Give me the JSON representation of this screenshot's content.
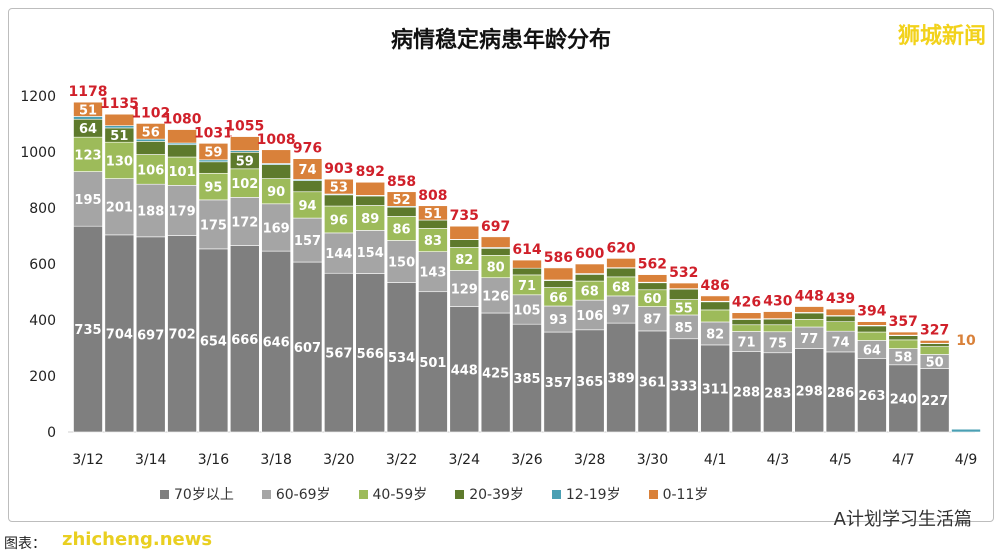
{
  "chart_data": {
    "type": "bar",
    "stacked": true,
    "title": "病情稳定病患年龄分布",
    "categories": [
      "3/12",
      "3/13",
      "3/14",
      "3/15",
      "3/16",
      "3/17",
      "3/18",
      "3/19",
      "3/20",
      "3/21",
      "3/22",
      "3/23",
      "3/24",
      "3/25",
      "3/26",
      "3/27",
      "3/28",
      "3/29",
      "3/30",
      "3/31",
      "4/1",
      "4/2",
      "4/3",
      "4/4",
      "4/5",
      "4/6",
      "4/7",
      "4/8",
      "4/9"
    ],
    "tick_labels": [
      "3/12",
      "3/14",
      "3/16",
      "3/18",
      "3/20",
      "3/22",
      "3/24",
      "3/26",
      "3/28",
      "3/30",
      "4/1",
      "4/3",
      "4/5",
      "4/7",
      "4/9"
    ],
    "ylim": [
      0,
      1200
    ],
    "yticks": [
      0,
      200,
      400,
      600,
      800,
      1000,
      1200
    ],
    "grid": false,
    "legend_position": "bottom",
    "totals": [
      1178,
      1135,
      1102,
      1080,
      1031,
      1055,
      1008,
      976,
      903,
      892,
      858,
      808,
      735,
      697,
      614,
      586,
      600,
      620,
      562,
      532,
      486,
      426,
      430,
      448,
      439,
      394,
      357,
      327,
      10
    ],
    "series": [
      {
        "name": "70岁以上",
        "color": "#7f7f7f",
        "values": [
          735,
          704,
          697,
          702,
          654,
          666,
          646,
          607,
          567,
          566,
          534,
          501,
          448,
          425,
          385,
          357,
          365,
          389,
          361,
          333,
          311,
          288,
          283,
          298,
          286,
          263,
          240,
          227,
          0
        ]
      },
      {
        "name": "60-69岁",
        "color": "#a5a5a5",
        "values": [
          195,
          201,
          188,
          179,
          175,
          172,
          169,
          157,
          144,
          154,
          150,
          143,
          129,
          126,
          105,
          93,
          106,
          97,
          87,
          85,
          82,
          71,
          75,
          77,
          74,
          64,
          58,
          50,
          0
        ]
      },
      {
        "name": "40-59岁",
        "color": "#9dbb5a",
        "values": [
          123,
          130,
          106,
          101,
          95,
          102,
          90,
          94,
          96,
          89,
          86,
          83,
          82,
          80,
          71,
          66,
          68,
          68,
          60,
          55,
          43,
          24,
          25,
          27,
          34,
          30,
          31,
          28,
          0
        ]
      },
      {
        "name": "20-39岁",
        "color": "#5e7a2c",
        "values": [
          64,
          51,
          47,
          44,
          41,
          59,
          50,
          40,
          40,
          34,
          33,
          30,
          28,
          25,
          24,
          25,
          24,
          31,
          25,
          37,
          29,
          19,
          20,
          23,
          20,
          22,
          15,
          11,
          0
        ]
      },
      {
        "name": "12-19岁",
        "color": "#4a9fb3",
        "values": [
          10,
          8,
          8,
          6,
          7,
          6,
          4,
          4,
          3,
          2,
          3,
          0,
          1,
          3,
          0,
          2,
          3,
          2,
          2,
          2,
          2,
          2,
          2,
          2,
          2,
          2,
          2,
          1,
          10
        ]
      },
      {
        "name": "0-11岁",
        "color": "#d9813a",
        "values": [
          51,
          41,
          56,
          48,
          59,
          50,
          49,
          74,
          53,
          47,
          52,
          51,
          47,
          38,
          29,
          43,
          34,
          33,
          27,
          20,
          19,
          22,
          25,
          21,
          23,
          13,
          11,
          10,
          0
        ]
      }
    ],
    "total_label_color": "#d0202a"
  },
  "logo_text": "狮城新闻",
  "watermark": "zhicheng.news",
  "caption_prefix": "图表：",
  "source_text": "A计划学习生活篇"
}
